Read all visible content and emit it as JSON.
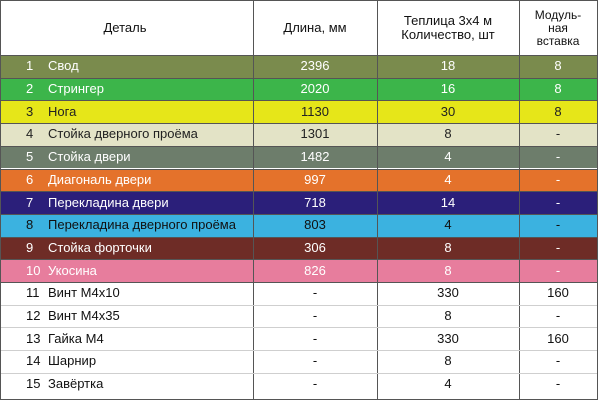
{
  "header": {
    "part": "Деталь",
    "length": "Длина, мм",
    "qty_line1": "Теплица 3х4 м",
    "qty_line2": "Количество, шт",
    "module_line1": "Модуль-",
    "module_line2": "ная",
    "module_line3": "вставка"
  },
  "rows": [
    {
      "num": "1",
      "name": "Свод",
      "length": "2396",
      "qty": "18",
      "module": "8",
      "color": "#7a8b4d",
      "text_color": "#ffffff"
    },
    {
      "num": "2",
      "name": "Стрингер",
      "length": "2020",
      "qty": "16",
      "module": "8",
      "color": "#3cb54a",
      "text_color": "#ffffff"
    },
    {
      "num": "3",
      "name": "Нога",
      "length": "1130",
      "qty": "30",
      "module": "8",
      "color": "#e6e619",
      "text_color": "#222222"
    },
    {
      "num": "4",
      "name": "Стойка дверного проёма",
      "length": "1301",
      "qty": "8",
      "module": "-",
      "color": "#e3e3c6",
      "text_color": "#222222"
    },
    {
      "num": "5",
      "name": "Стойка двери",
      "length": "1482",
      "qty": "4",
      "module": "-",
      "color": "#6d7d6b",
      "text_color": "#ffffff"
    },
    {
      "num": "6",
      "name": "Диагональ двери",
      "length": "997",
      "qty": "4",
      "module": "-",
      "color": "#e4722b",
      "text_color": "#ffffff"
    },
    {
      "num": "7",
      "name": "Перекладина двери",
      "length": "718",
      "qty": "14",
      "module": "-",
      "color": "#2b1f7a",
      "text_color": "#ffffff"
    },
    {
      "num": "8",
      "name": "Перекладина дверного проёма",
      "length": "803",
      "qty": "4",
      "module": "-",
      "color": "#3bb2e0",
      "text_color": "#111111"
    },
    {
      "num": "9",
      "name": "Стойка форточки",
      "length": "306",
      "qty": "8",
      "module": "-",
      "color": "#6e2c26",
      "text_color": "#ffffff"
    },
    {
      "num": "10",
      "name": "Укосина",
      "length": "826",
      "qty": "8",
      "module": "-",
      "color": "#e77d9d",
      "text_color": "#ffffff"
    },
    {
      "num": "11",
      "name": "Винт М4х10",
      "length": "-",
      "qty": "330",
      "module": "160",
      "color": "#ffffff",
      "text_color": "#111111"
    },
    {
      "num": "12",
      "name": "Винт М4х35",
      "length": "-",
      "qty": "8",
      "module": "-",
      "color": "#ffffff",
      "text_color": "#111111"
    },
    {
      "num": "13",
      "name": "Гайка М4",
      "length": "-",
      "qty": "330",
      "module": "160",
      "color": "#ffffff",
      "text_color": "#111111"
    },
    {
      "num": "14",
      "name": "Шарнир",
      "length": "-",
      "qty": "8",
      "module": "-",
      "color": "#ffffff",
      "text_color": "#111111"
    },
    {
      "num": "15",
      "name": "Завёртка",
      "length": "-",
      "qty": "4",
      "module": "-",
      "color": "#ffffff",
      "text_color": "#111111"
    }
  ]
}
